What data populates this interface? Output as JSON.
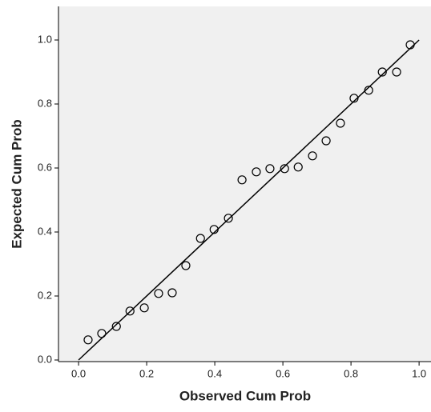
{
  "chart_data": {
    "type": "scatter",
    "xlabel": "Observed Cum Prob",
    "ylabel": "Expected Cum Prob",
    "series": [
      {
        "color": "#000000",
        "x": [
          0.028,
          0.068,
          0.111,
          0.151,
          0.193,
          0.235,
          0.275,
          0.315,
          0.358,
          0.398,
          0.44,
          0.48,
          0.522,
          0.562,
          0.605,
          0.645,
          0.687,
          0.727,
          0.769,
          0.809,
          0.852,
          0.892,
          0.934,
          0.974
        ],
        "values": [
          0.063,
          0.083,
          0.105,
          0.153,
          0.163,
          0.208,
          0.21,
          0.295,
          0.38,
          0.408,
          0.443,
          0.563,
          0.588,
          0.598,
          0.598,
          0.603,
          0.638,
          0.685,
          0.74,
          0.818,
          0.843,
          0.9,
          0.9,
          0.985
        ]
      }
    ],
    "reference_line": {
      "x": [
        0,
        1
      ],
      "values": [
        0,
        1
      ],
      "color": "#000000"
    },
    "xlim": [
      -0.059,
      1.035
    ],
    "ylim": [
      -0.005,
      1.105
    ],
    "xticks": [
      {
        "value": 0,
        "label": "0.0"
      },
      0.2,
      0.4,
      0.6,
      0.8,
      {
        "value": 1,
        "label": "1.0"
      }
    ],
    "yticks": [
      {
        "value": 0,
        "label": "0.0"
      },
      0.2,
      0.4,
      0.6,
      0.8,
      {
        "value": 1,
        "label": "1.0"
      }
    ],
    "background": "#f0f0f0"
  }
}
